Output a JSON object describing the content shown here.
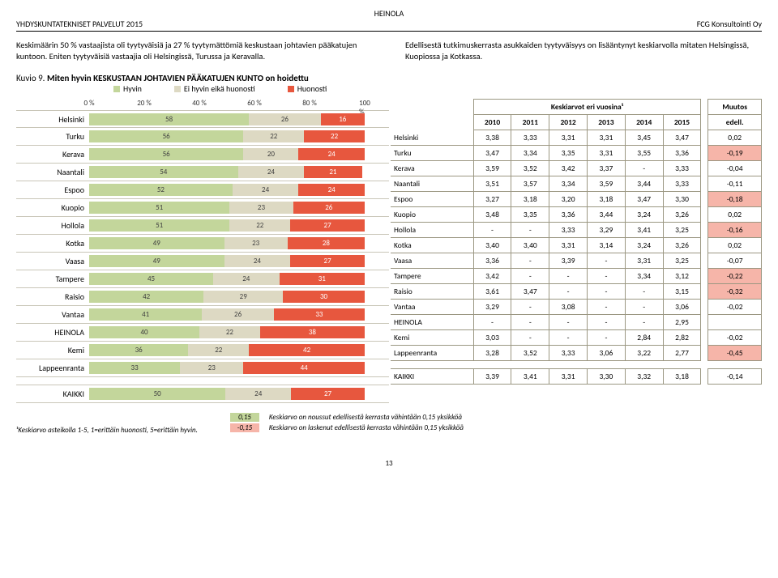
{
  "header": {
    "center": "HEINOLA",
    "left": "YHDYSKUNTATEKNISET PALVELUT 2015",
    "right": "FCG Konsultointi Oy"
  },
  "intro": {
    "left": "Keskimäärin 50 % vastaajista oli tyytyväisiä ja 27 % tyytymättömiä keskustaan johtavien pääkatujen kuntoon. Eniten tyytyväisiä vastaajia oli Helsingissä, Turussa ja Keravalla.",
    "right": "Edellisestä tutkimuskerrasta asukkaiden tyytyväisyys on lisääntynyt keskiarvolla mitaten Helsingissä, Kuopiossa ja Kotkassa."
  },
  "kuvio": {
    "prefix": "Kuvio 9. ",
    "title": "Miten hyvin KESKUSTAAN JOHTAVIEN PÄÄKATUJEN KUNTO on hoidettu",
    "legend": {
      "hyvin": "Hyvin",
      "eihy": "Ei hyvin eikä huonosti",
      "huon": "Huonosti"
    },
    "axis_labels": [
      "0 %",
      "20 %",
      "40 %",
      "60 %",
      "80 %",
      "100 %"
    ],
    "colors": {
      "hyvin": "#c3d69b",
      "eihy": "#ddd9c3",
      "huon": "#e7573e"
    }
  },
  "rows": [
    {
      "city": "Helsinki",
      "hyvin": 58,
      "eihy": 26,
      "huon": 16,
      "y": [
        "3,38",
        "3,33",
        "3,31",
        "3,31",
        "3,45",
        "3,47"
      ],
      "d": "0,02",
      "cls": ""
    },
    {
      "city": "Turku",
      "hyvin": 56,
      "eihy": 22,
      "huon": 22,
      "y": [
        "3,47",
        "3,34",
        "3,35",
        "3,31",
        "3,55",
        "3,36"
      ],
      "d": "-0,19",
      "cls": "neg"
    },
    {
      "city": "Kerava",
      "hyvin": 56,
      "eihy": 20,
      "huon": 24,
      "y": [
        "3,59",
        "3,52",
        "3,42",
        "3,37",
        "-",
        "3,33"
      ],
      "d": "-0,04",
      "cls": ""
    },
    {
      "city": "Naantali",
      "hyvin": 54,
      "eihy": 24,
      "huon": 21,
      "y": [
        "3,51",
        "3,57",
        "3,34",
        "3,59",
        "3,44",
        "3,33"
      ],
      "d": "-0,11",
      "cls": ""
    },
    {
      "city": "Espoo",
      "hyvin": 52,
      "eihy": 24,
      "huon": 24,
      "y": [
        "3,27",
        "3,18",
        "3,20",
        "3,18",
        "3,47",
        "3,30"
      ],
      "d": "-0,18",
      "cls": "neg"
    },
    {
      "city": "Kuopio",
      "hyvin": 51,
      "eihy": 23,
      "huon": 26,
      "y": [
        "3,48",
        "3,35",
        "3,36",
        "3,44",
        "3,24",
        "3,26"
      ],
      "d": "0,02",
      "cls": ""
    },
    {
      "city": "Hollola",
      "hyvin": 51,
      "eihy": 22,
      "huon": 27,
      "y": [
        "-",
        "-",
        "3,33",
        "3,29",
        "3,41",
        "3,25"
      ],
      "d": "-0,16",
      "cls": "neg"
    },
    {
      "city": "Kotka",
      "hyvin": 49,
      "eihy": 23,
      "huon": 28,
      "y": [
        "3,40",
        "3,40",
        "3,31",
        "3,14",
        "3,24",
        "3,26"
      ],
      "d": "0,02",
      "cls": ""
    },
    {
      "city": "Vaasa",
      "hyvin": 49,
      "eihy": 24,
      "huon": 27,
      "y": [
        "3,36",
        "-",
        "3,39",
        "-",
        "3,31",
        "3,25"
      ],
      "d": "-0,07",
      "cls": ""
    },
    {
      "city": "Tampere",
      "hyvin": 45,
      "eihy": 24,
      "huon": 31,
      "y": [
        "3,42",
        "-",
        "-",
        "-",
        "3,34",
        "3,12"
      ],
      "d": "-0,22",
      "cls": "neg"
    },
    {
      "city": "Raisio",
      "hyvin": 42,
      "eihy": 29,
      "huon": 30,
      "y": [
        "3,61",
        "3,47",
        "-",
        "-",
        "-",
        "3,15"
      ],
      "d": "-0,32",
      "cls": "neg"
    },
    {
      "city": "Vantaa",
      "hyvin": 41,
      "eihy": 26,
      "huon": 33,
      "y": [
        "3,29",
        "-",
        "3,08",
        "-",
        "-",
        "3,06"
      ],
      "d": "-0,02",
      "cls": ""
    },
    {
      "city": "HEINOLA",
      "hyvin": 40,
      "eihy": 22,
      "huon": 38,
      "y": [
        "-",
        "-",
        "-",
        "-",
        "-",
        "2,95"
      ],
      "d": "",
      "cls": ""
    },
    {
      "city": "Kemi",
      "hyvin": 36,
      "eihy": 22,
      "huon": 42,
      "y": [
        "3,03",
        "-",
        "-",
        "-",
        "2,84",
        "2,82"
      ],
      "d": "-0,02",
      "cls": ""
    },
    {
      "city": "Lappeenranta",
      "hyvin": 33,
      "eihy": 23,
      "huon": 44,
      "y": [
        "3,28",
        "3,52",
        "3,33",
        "3,06",
        "3,22",
        "2,77"
      ],
      "d": "-0,45",
      "cls": "neg"
    }
  ],
  "kaikki": {
    "city": "KAIKKI",
    "hyvin": 50,
    "eihy": 24,
    "huon": 27,
    "y": [
      "3,39",
      "3,41",
      "3,31",
      "3,30",
      "3,32",
      "3,18"
    ],
    "d": "-0,14",
    "cls": ""
  },
  "table_header": {
    "group": "Keskiarvot eri vuosina¹",
    "muutos": "Muutos",
    "years": [
      "2010",
      "2011",
      "2012",
      "2013",
      "2014",
      "2015"
    ],
    "edell": "edell."
  },
  "footnote": "¹Keskiarvo asteikolla 1-5, 1=erittäin huonosti, 5=erittäin hyvin.",
  "footkeys": {
    "pos_val": "0,15",
    "pos_txt": "Keskiarvo on noussut edellisestä kerrasta vähintään 0,15 yksikköä",
    "neg_val": "-0,15",
    "neg_txt": "Keskiarvo on laskenut edellisestä kerrasta vähintään 0,15 yksikköä"
  },
  "page_number": "13"
}
